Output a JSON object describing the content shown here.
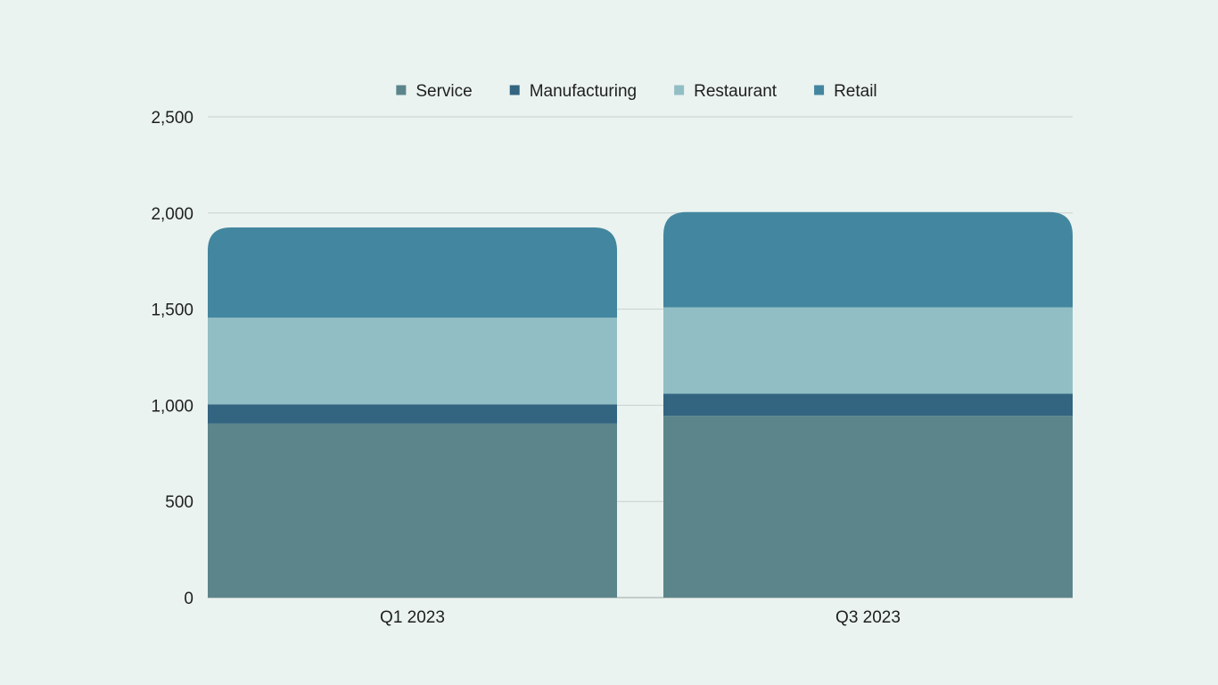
{
  "chart_data": {
    "type": "bar",
    "stacked": true,
    "categories": [
      "Q1 2023",
      "Q3 2023"
    ],
    "series": [
      {
        "name": "Service",
        "color": "#5b858b",
        "values": [
          905,
          945
        ]
      },
      {
        "name": "Manufacturing",
        "color": "#336480",
        "values": [
          100,
          115
        ]
      },
      {
        "name": "Restaurant",
        "color": "#91bec4",
        "values": [
          450,
          450
        ]
      },
      {
        "name": "Retail",
        "color": "#43869f",
        "values": [
          470,
          495
        ]
      }
    ],
    "yticks": [
      "0",
      "500",
      "1,000",
      "1,500",
      "2,000",
      "2,500"
    ],
    "ylim": [
      0,
      2500
    ],
    "grid": true,
    "legend": "top-center",
    "title": "",
    "xlabel": "",
    "ylabel": ""
  }
}
